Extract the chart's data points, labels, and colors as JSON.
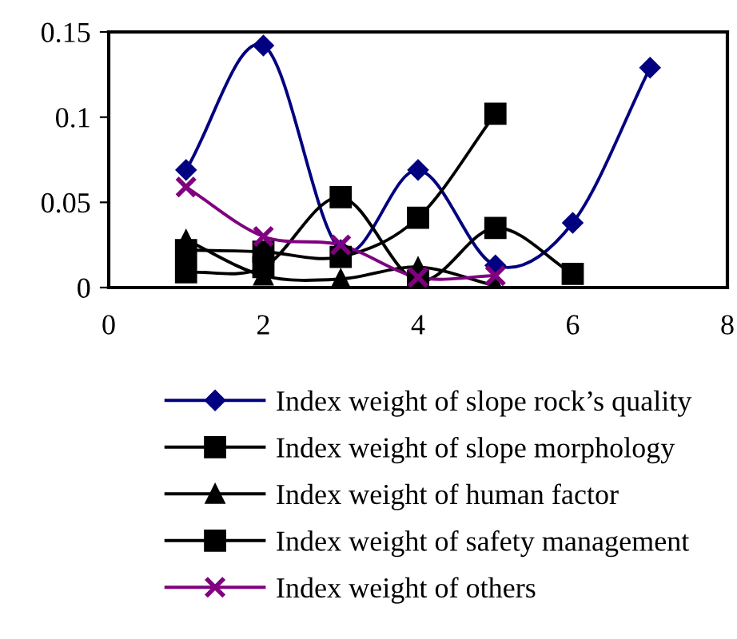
{
  "chart_data": {
    "type": "line",
    "x": [
      1,
      2,
      3,
      4,
      5,
      6,
      7
    ],
    "xlim": [
      0,
      8
    ],
    "xticks": [
      0,
      2,
      4,
      6,
      8
    ],
    "ylim": [
      0,
      0.15
    ],
    "yticks": [
      0,
      0.05,
      0.1,
      0.15
    ],
    "grid": false,
    "legend": "bottom",
    "line_style": "solid",
    "series": [
      {
        "name": "Index weight of slope rock’s quality",
        "color": "#000080",
        "marker": "diamond",
        "values": [
          0.069,
          0.142,
          0.022,
          0.069,
          0.013,
          0.038,
          0.129
        ]
      },
      {
        "name": "Index weight of slope morphology",
        "color": "#000000",
        "marker": "square",
        "values": [
          0.022,
          0.021,
          0.018,
          0.041,
          0.102,
          null,
          null
        ]
      },
      {
        "name": "Index weight of human factor",
        "color": "#000000",
        "marker": "triangle",
        "values": [
          0.028,
          0.007,
          0.005,
          0.012,
          0.001,
          null,
          null
        ]
      },
      {
        "name": "Index weight of safety management",
        "color": "#000000",
        "marker": "square",
        "values": [
          0.009,
          0.012,
          0.053,
          0.004,
          0.035,
          0.008,
          null
        ]
      },
      {
        "name": "Index weight of others",
        "color": "#800080",
        "marker": "cross",
        "values": [
          0.059,
          0.03,
          0.025,
          0.006,
          0.007,
          null,
          null
        ]
      }
    ]
  }
}
